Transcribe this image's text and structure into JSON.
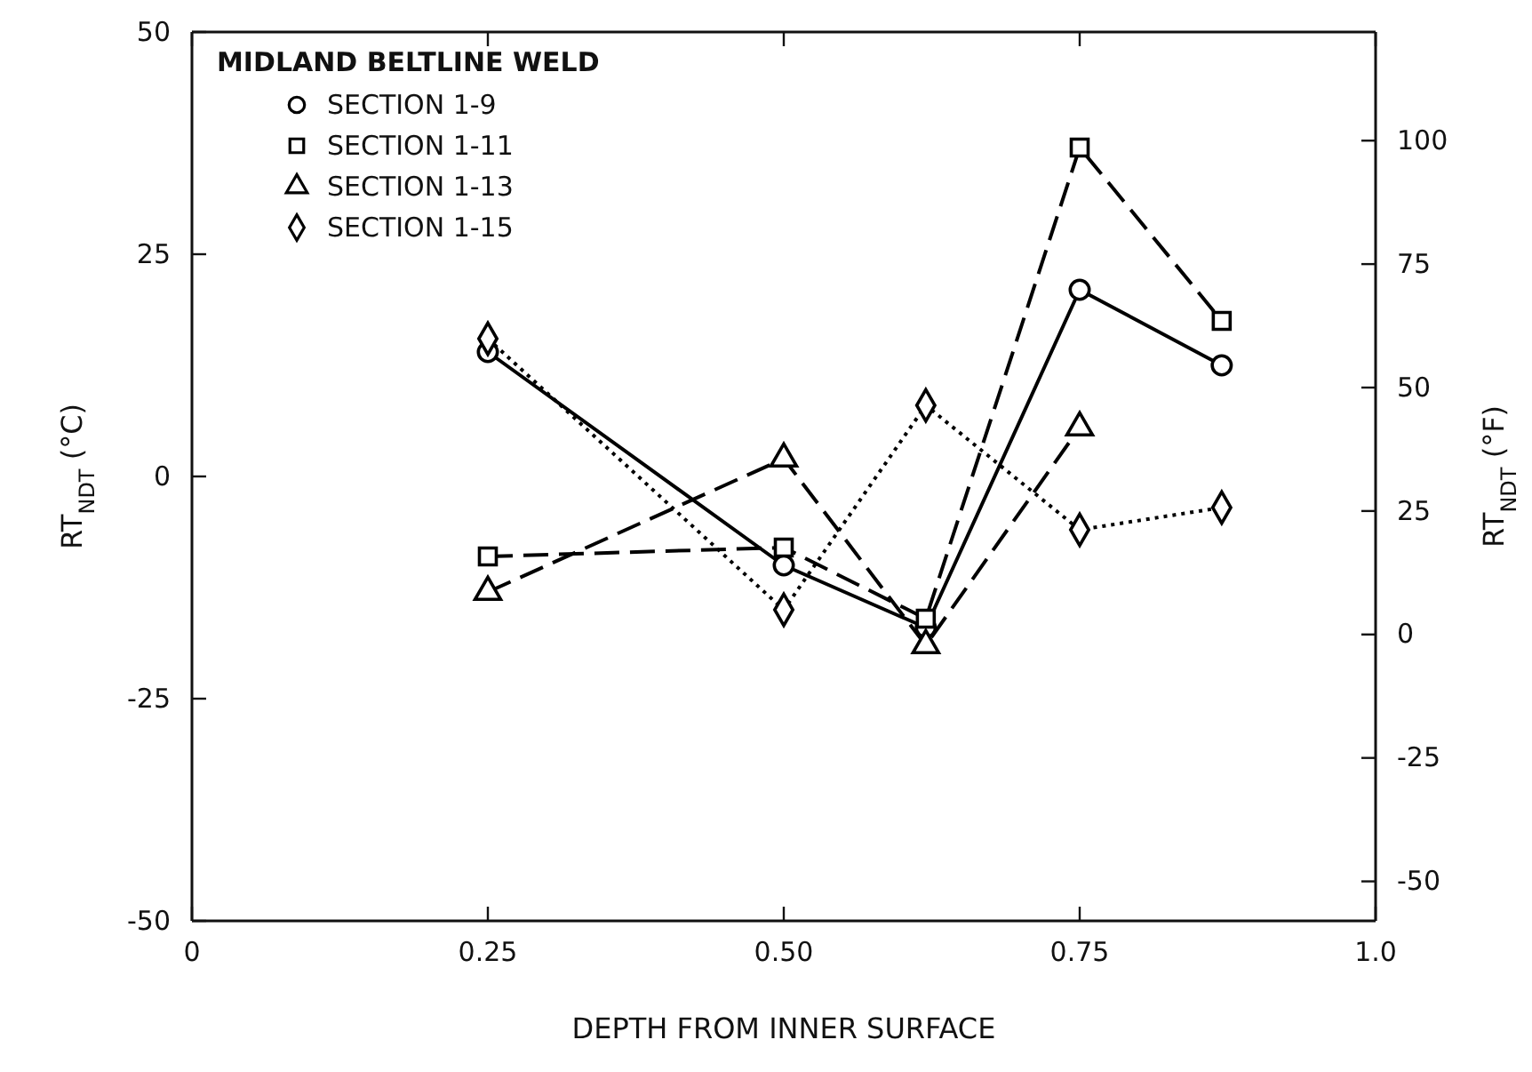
{
  "chart_data": {
    "type": "line",
    "xlabel": "DEPTH FROM INNER SURFACE",
    "ylabel": "RT$_{NDT}$ (°C)",
    "y2label": "RT$_{NDT}$ (°F)",
    "legend_title": "MIDLAND BELTLINE WELD",
    "legend": "top left",
    "xlim": [
      0,
      1
    ],
    "xticks": [
      0,
      {
        "value": 0.25,
        "label": "0.25"
      },
      {
        "value": 0.5,
        "label": "0.50"
      },
      {
        "value": 0.75,
        "label": "0.75"
      },
      {
        "value": 1,
        "label": "1.0"
      }
    ],
    "ylim": [
      -50,
      50
    ],
    "yticks": [
      -50,
      -25,
      0,
      25,
      50
    ],
    "y2lim": [
      -58,
      122
    ],
    "y2ticks": [
      -50,
      -25,
      0,
      25,
      50,
      75,
      100
    ],
    "series": [
      {
        "name": "SECTION 1-9",
        "color": "#000000",
        "marker": "circle",
        "line_style": "solid",
        "x": [
          0.25,
          0.5,
          0.62,
          0.75,
          0.87
        ],
        "values": [
          14,
          -10,
          -17,
          21,
          12.5
        ]
      },
      {
        "name": "SECTION 1-11",
        "color": "#000000",
        "marker": "square",
        "line_style": "dashed",
        "x": [
          0.25,
          0.5,
          0.62,
          0.75,
          0.87
        ],
        "values": [
          -9,
          -8,
          -16,
          37,
          17.5
        ]
      },
      {
        "name": "SECTION 1-13",
        "color": "#000000",
        "marker": "triangle",
        "line_style": "dashed",
        "x": [
          0.25,
          0.5,
          0.62,
          0.75
        ],
        "values": [
          -13,
          2,
          -19,
          5.5
        ]
      },
      {
        "name": "SECTION 1-15",
        "color": "#000000",
        "marker": "diamond",
        "line_style": "dotted",
        "x": [
          0.25,
          0.5,
          0.62,
          0.75,
          0.87
        ],
        "values": [
          15.5,
          -15,
          8,
          -6,
          -3.5
        ]
      }
    ]
  }
}
